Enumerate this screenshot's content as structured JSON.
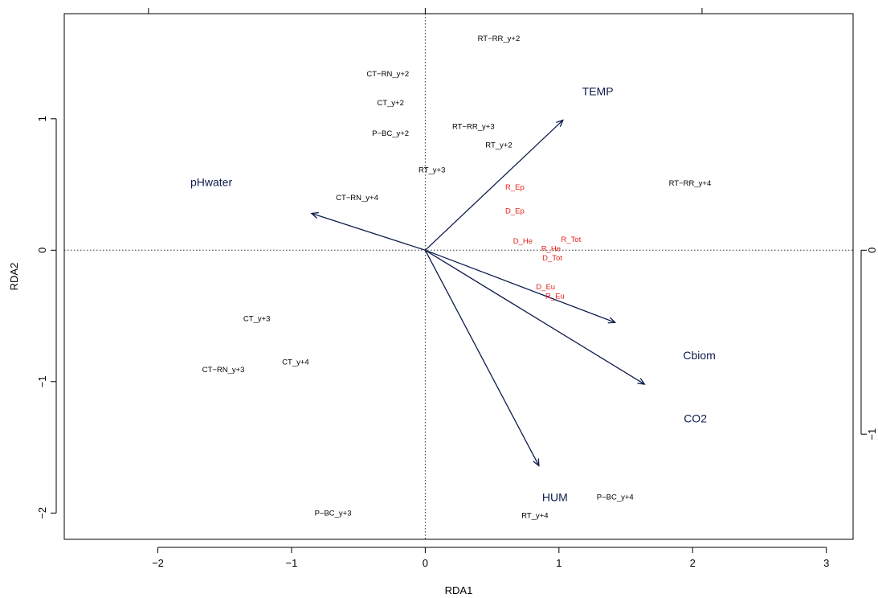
{
  "chart_data": {
    "type": "scatter",
    "title": "",
    "xlabel": "RDA1",
    "ylabel": "RDA2",
    "xlim": [
      -2.7,
      3.2
    ],
    "ylim": [
      -2.2,
      1.8
    ],
    "x_ticks": [
      "−2",
      "−1",
      "0",
      "1",
      "2",
      "3"
    ],
    "x_tick_values": [
      -2,
      -1,
      0,
      1,
      2,
      3
    ],
    "y_ticks": [
      "−2",
      "−1",
      "0",
      "1"
    ],
    "y_tick_values": [
      -2,
      -1,
      0,
      1
    ],
    "right_axis_ticks": [
      "−1",
      "0"
    ],
    "right_axis_tick_values": [
      -1.4,
      0
    ],
    "top_axis_tick_values": [
      -2.07,
      0,
      2.07
    ],
    "zero_lines": true,
    "arrow_color": "#0e1b4d",
    "species_color": "#e8201c",
    "site_color": "#000000",
    "sites": [
      {
        "label": "RT−RR_y+2",
        "x": 0.55,
        "y": 1.61
      },
      {
        "label": "CT−RN_y+2",
        "x": -0.28,
        "y": 1.34
      },
      {
        "label": "CT_y+2",
        "x": -0.26,
        "y": 1.12
      },
      {
        "label": "P−BC_y+2",
        "x": -0.26,
        "y": 0.89
      },
      {
        "label": "RT−RR_y+3",
        "x": 0.36,
        "y": 0.94
      },
      {
        "label": "RT_y+2",
        "x": 0.55,
        "y": 0.8
      },
      {
        "label": "RT_y+3",
        "x": 0.05,
        "y": 0.61
      },
      {
        "label": "CT−RN_y+4",
        "x": -0.51,
        "y": 0.4
      },
      {
        "label": "RT−RR_y+4",
        "x": 1.98,
        "y": 0.51
      },
      {
        "label": "CT_y+3",
        "x": -1.26,
        "y": -0.52
      },
      {
        "label": "CT_y+4",
        "x": -0.97,
        "y": -0.85
      },
      {
        "label": "CT−RN_y+3",
        "x": -1.51,
        "y": -0.91
      },
      {
        "label": "P−BC_y+3",
        "x": -0.69,
        "y": -2.0
      },
      {
        "label": "P−BC_y+4",
        "x": 1.42,
        "y": -1.88
      },
      {
        "label": "RT_y+4",
        "x": 0.82,
        "y": -2.02
      }
    ],
    "species": [
      {
        "label": "R_Ep",
        "x": 0.67,
        "y": 0.48
      },
      {
        "label": "D_Ep",
        "x": 0.67,
        "y": 0.3
      },
      {
        "label": "D_He",
        "x": 0.73,
        "y": 0.07
      },
      {
        "label": "R_Tot",
        "x": 1.09,
        "y": 0.08
      },
      {
        "label": "R_He",
        "x": 0.94,
        "y": 0.01
      },
      {
        "label": "D_Tot",
        "x": 0.95,
        "y": -0.06
      },
      {
        "label": "D_Eu",
        "x": 0.9,
        "y": -0.28
      },
      {
        "label": "R_Eu",
        "x": 0.97,
        "y": -0.35
      }
    ],
    "env_vectors": [
      {
        "label": "TEMP",
        "x": 1.03,
        "y": 0.99,
        "label_x": 1.29,
        "label_y": 1.21
      },
      {
        "label": "pHwater",
        "x": -0.85,
        "y": 0.28,
        "label_x": -1.6,
        "label_y": 0.52
      },
      {
        "label": "Cbiom",
        "x": 1.42,
        "y": -0.55,
        "label_x": 2.05,
        "label_y": -0.8
      },
      {
        "label": "CO2",
        "x": 1.64,
        "y": -1.02,
        "label_x": 2.02,
        "label_y": -1.28
      },
      {
        "label": "HUM",
        "x": 0.85,
        "y": -1.64,
        "label_x": 0.97,
        "label_y": -1.88
      }
    ]
  }
}
